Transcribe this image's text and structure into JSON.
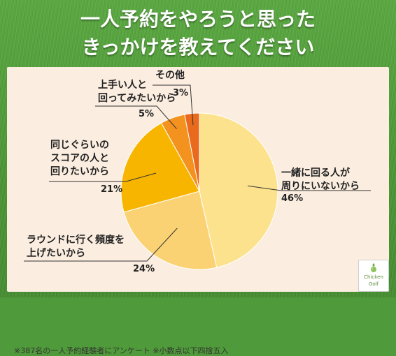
{
  "title": {
    "line1": "一人予約をやろうと思った",
    "line2": "きっかけを教えてください"
  },
  "note": "※387名の一人予約経験者にアンケート ※小数点以下四捨五入",
  "logo": {
    "line1": "Chicken",
    "line2": "Golf"
  },
  "colors": {
    "background": "#4f9a3a",
    "panel": "#fbeee0",
    "leader": "#333333"
  },
  "chart_data": {
    "type": "pie",
    "start": "top",
    "direction": "clockwise",
    "slices": [
      {
        "label_lines": [
          "一緒に回る人が",
          "周りにいないから"
        ],
        "value": 46,
        "value_label": "46%",
        "color": "#fce28c"
      },
      {
        "label_lines": [
          "ラウンドに行く頻度を",
          "上げたいから"
        ],
        "value": 24,
        "value_label": "24%",
        "color": "#fbd273"
      },
      {
        "label_lines": [
          "同じぐらいの",
          "スコアの人と",
          "回りたいから"
        ],
        "value": 21,
        "value_label": "21%",
        "color": "#f7b500"
      },
      {
        "label_lines": [
          "上手い人と",
          "回ってみたいから"
        ],
        "value": 5,
        "value_label": "5%",
        "color": "#f3921f"
      },
      {
        "label_lines": [
          "その他"
        ],
        "value": 3,
        "value_label": "3%",
        "color": "#e96a1d"
      }
    ]
  }
}
